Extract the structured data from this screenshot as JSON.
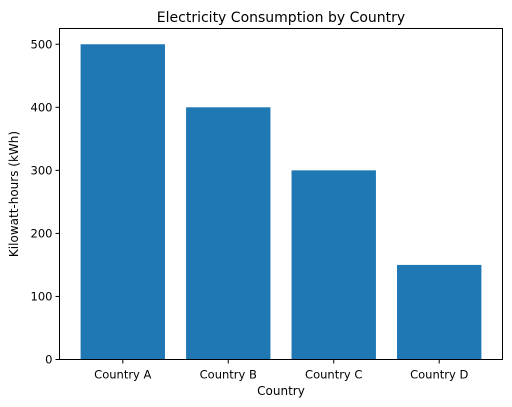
{
  "chart_data": {
    "type": "bar",
    "title": "Electricity Consumption by Country",
    "xlabel": "Country",
    "ylabel": "Kilowatt-hours (kWh)",
    "categories": [
      "Country A",
      "Country B",
      "Country C",
      "Country D"
    ],
    "values": [
      500,
      400,
      300,
      150
    ],
    "ylim": [
      0,
      525
    ],
    "yticks": [
      0,
      100,
      200,
      300,
      400,
      500
    ],
    "grid": false,
    "legend": false,
    "bar_color": "#1f77b4"
  }
}
